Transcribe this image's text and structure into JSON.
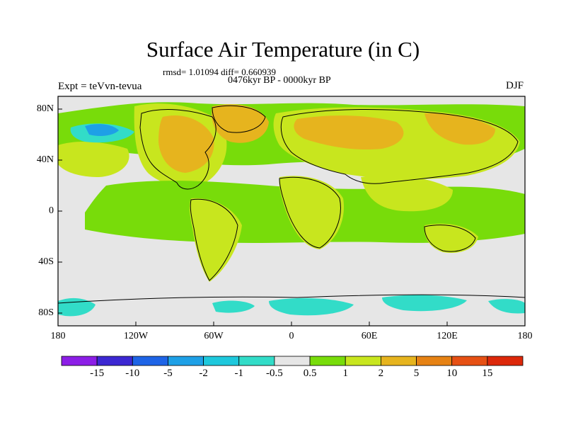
{
  "header": {
    "title": "Surface Air Temperature (in C)",
    "stats": "rmsd= 1.01094 diff= 0.660939",
    "period": "0476kyr BP - 0000kyr BP",
    "experiment": "Expt = teVvn-tevua",
    "season": "DJF"
  },
  "map": {
    "x_ticks": [
      "180",
      "120W",
      "60W",
      "0",
      "60E",
      "120E",
      "180"
    ],
    "y_ticks": [
      "80N",
      "40N",
      "0",
      "40S",
      "80S"
    ],
    "lon_range": [
      -180,
      180
    ],
    "lat_range": [
      -90,
      90
    ]
  },
  "colorbar": {
    "labels": [
      "-15",
      "-10",
      "-5",
      "-2",
      "-1",
      "-0.5",
      "0.5",
      "1",
      "2",
      "5",
      "10",
      "15"
    ],
    "colors": [
      "#8c1ee6",
      "#3c28d2",
      "#1e64e6",
      "#1ea0e6",
      "#1ec8dc",
      "#32dcc8",
      "#e6e6e6",
      "#78dc0a",
      "#c8e61e",
      "#e6b41e",
      "#e68214",
      "#e65014",
      "#dc280a"
    ]
  },
  "colors": {
    "neutral": "#e6e6e6",
    "light_green": "#78dc0a",
    "yellow_green": "#c8e61e",
    "orange": "#e6b41e",
    "cyan": "#32dcc8",
    "blue": "#1ea0e6"
  }
}
